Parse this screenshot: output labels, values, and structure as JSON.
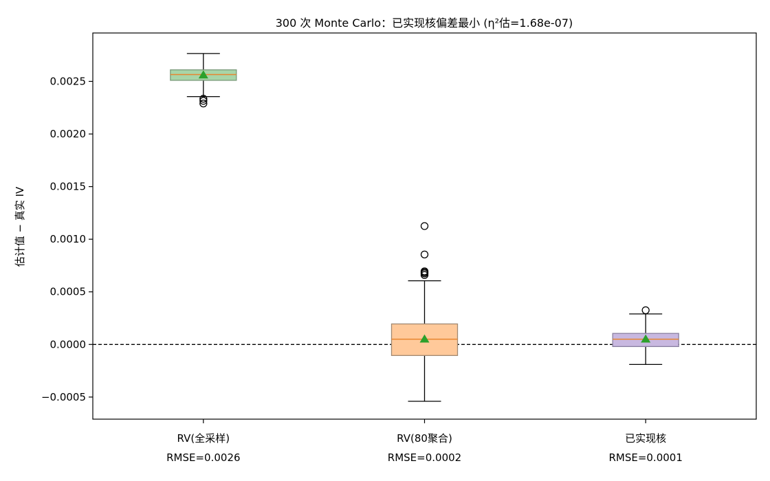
{
  "chart_data": {
    "type": "box",
    "title": "300 次 Monte Carlo：已实现核偏差最小 (η²估=1.68e-07)",
    "xlabel": "",
    "ylabel": "估计值 − 真实 IV",
    "ylim": [
      -0.00071,
      0.00296
    ],
    "yticks": [
      -0.0005,
      0.0,
      0.0005,
      0.001,
      0.0015,
      0.002,
      0.0025
    ],
    "ytick_labels": [
      "−0.0005",
      "0.0000",
      "0.0005",
      "0.0010",
      "0.0015",
      "0.0020",
      "0.0025"
    ],
    "reference_line": {
      "y": 0.0,
      "style": "dashed",
      "color": "#000000"
    },
    "grid": false,
    "categories": [
      {
        "name": "RV(全采样)",
        "subtitle": "RMSE=0.0026"
      },
      {
        "name": "RV(80聚合)",
        "subtitle": "RMSE=0.0002"
      },
      {
        "name": "已实现核",
        "subtitle": "RMSE=0.0001"
      }
    ],
    "boxes": [
      {
        "q1": 0.00251,
        "median": 0.002565,
        "q3": 0.00261,
        "whisker_low": 0.002355,
        "whisker_high": 0.002765,
        "mean": 0.00256,
        "outliers": [
          0.002335,
          0.002315,
          0.00229
        ],
        "fill": "#a8d5a8",
        "edge": "#7a9a7a"
      },
      {
        "q1": -0.000105,
        "median": 5e-05,
        "q3": 0.000195,
        "whisker_low": -0.00054,
        "whisker_high": 0.000605,
        "mean": 5e-05,
        "outliers": [
          0.00066,
          0.000675,
          0.000685,
          0.000695,
          0.000855,
          0.001125
        ],
        "fill": "#ffc99a",
        "edge": "#a08870"
      },
      {
        "q1": -2e-05,
        "median": 5e-05,
        "q3": 0.000105,
        "whisker_low": -0.00019,
        "whisker_high": 0.00029,
        "mean": 5e-05,
        "outliers": [
          0.000325
        ],
        "fill": "#c8b8e0",
        "edge": "#8a80a0"
      }
    ],
    "median_color": "#e8852e",
    "mean_color": "#2ca02c"
  }
}
